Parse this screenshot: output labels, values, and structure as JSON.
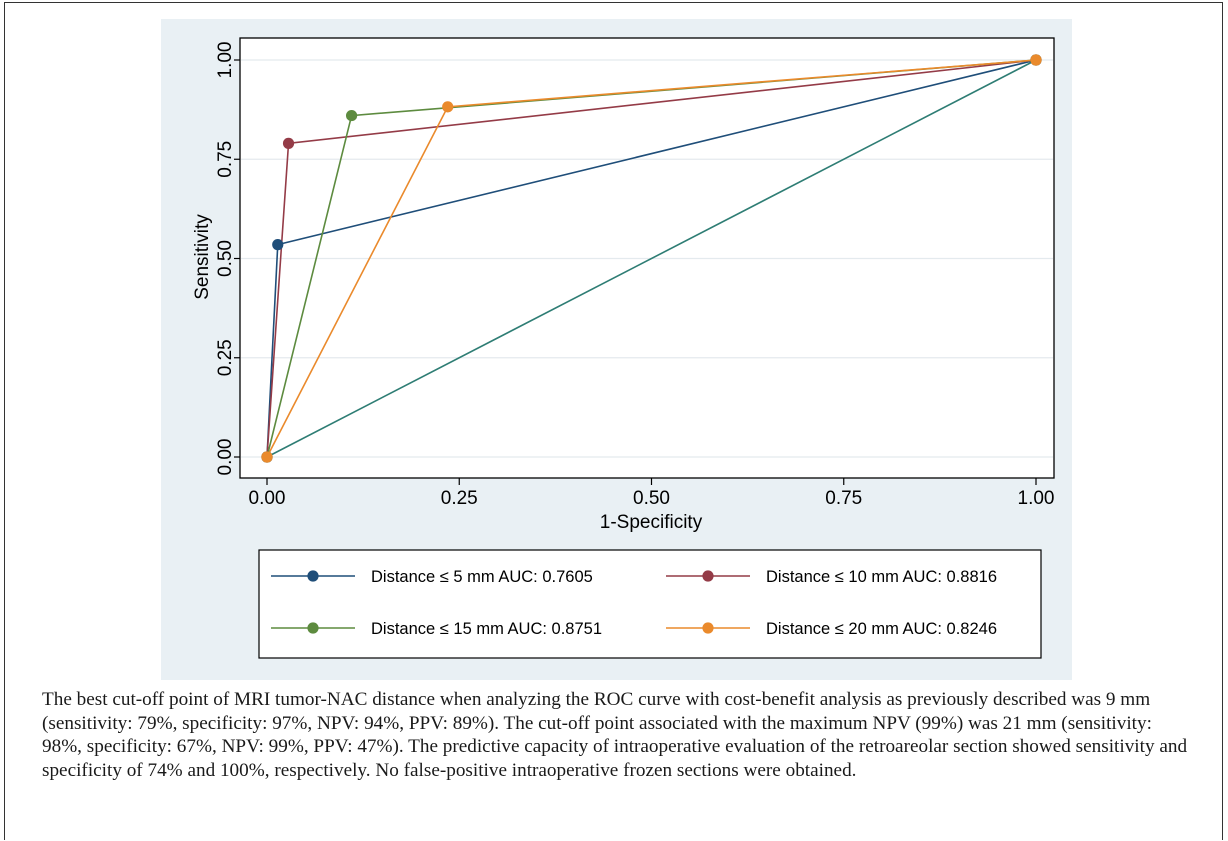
{
  "chart_data": {
    "type": "line",
    "xlabel": "1-Specificity",
    "ylabel": "Sensitivity",
    "xlim": [
      0,
      1
    ],
    "ylim": [
      0,
      1
    ],
    "xticks": [
      "0.00",
      "0.25",
      "0.50",
      "0.75",
      "1.00"
    ],
    "yticks": [
      "0.00",
      "0.25",
      "0.50",
      "0.75",
      "1.00"
    ],
    "grid": true,
    "legend_position": "bottom",
    "series": [
      {
        "name": "Distance ≤ 5 mm AUC: 0.7605",
        "color": "#1f4e79",
        "x": [
          0,
          0.014,
          1
        ],
        "y": [
          0,
          0.535,
          1
        ]
      },
      {
        "name": "Distance ≤ 10 mm AUC: 0.8816",
        "color": "#943b47",
        "x": [
          0,
          0.028,
          1
        ],
        "y": [
          0,
          0.79,
          1
        ]
      },
      {
        "name": "Distance ≤ 15 mm AUC: 0.8751",
        "color": "#5d8b3f",
        "x": [
          0,
          0.11,
          1
        ],
        "y": [
          0,
          0.86,
          1
        ]
      },
      {
        "name": "Distance ≤ 20 mm AUC: 0.8246",
        "color": "#ea8a2c",
        "x": [
          0,
          0.235,
          1
        ],
        "y": [
          0,
          0.882,
          1
        ]
      }
    ],
    "reference_line": {
      "color": "#2e7d74",
      "x": [
        0,
        1
      ],
      "y": [
        0,
        1
      ]
    }
  },
  "caption": "The best cut-off point of MRI tumor-NAC distance when analyzing the ROC curve with cost-benefit analysis as previously described was 9 mm (sensitivity: 79%, specificity: 97%, NPV: 94%, PPV: 89%). The cut-off point associated with the maximum NPV (99%) was 21 mm (sensitivity: 98%, specificity: 67%, NPV: 99%, PPV: 47%). The predictive capacity of intraoperative evaluation of the retroareolar section showed sensitivity and specificity of 74% and 100%, respectively. No false-positive intraoperative frozen sections were obtained.",
  "colors": {
    "figure_background": "#e9f0f4",
    "plot_background": "#ffffff",
    "grid": "#e4eaee"
  }
}
